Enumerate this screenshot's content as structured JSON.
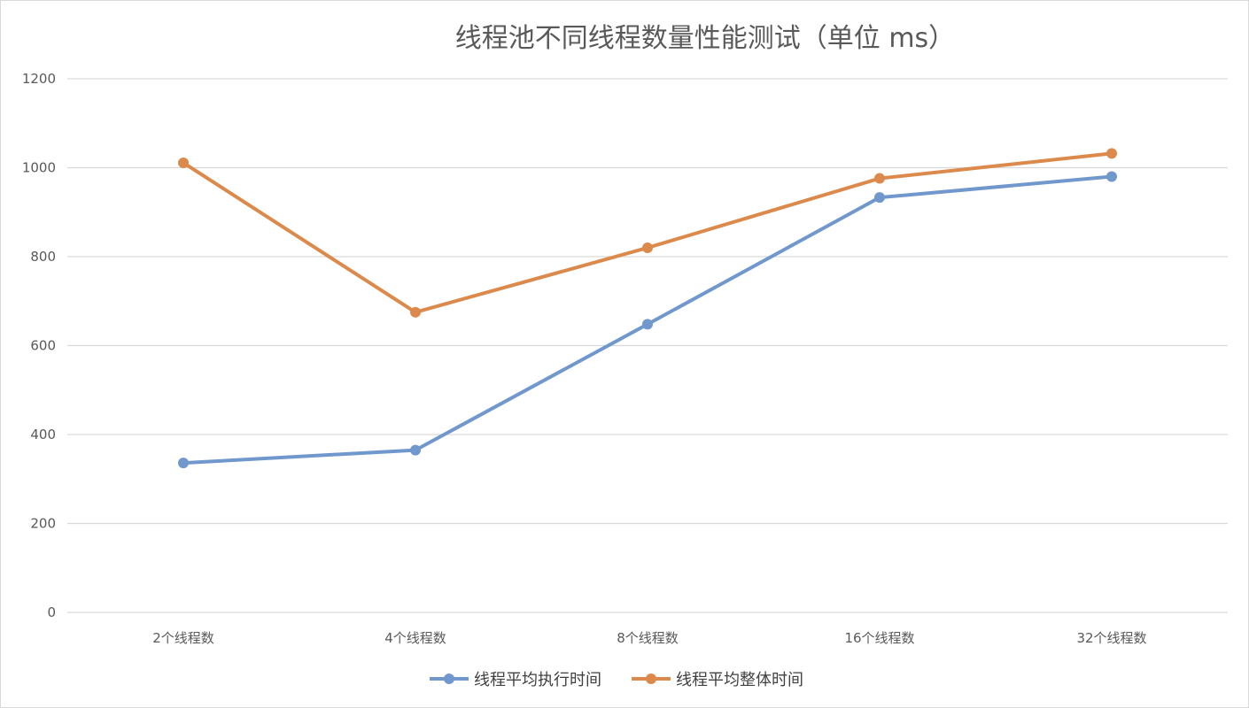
{
  "chart_data": {
    "type": "line",
    "title": "线程池不同线程数量性能测试（单位 ms）",
    "categories": [
      "2个线程数",
      "4个线程数",
      "8个线程数",
      "16个线程数",
      "32个线程数"
    ],
    "ylim": [
      0,
      1200
    ],
    "yticks": [
      0,
      200,
      400,
      600,
      800,
      1000,
      1200
    ],
    "grid": true,
    "legend_position": "bottom",
    "series": [
      {
        "name": "线程平均执行时间",
        "color": "#7098cd",
        "values": [
          336,
          365,
          648,
          933,
          980
        ]
      },
      {
        "name": "线程平均整体时间",
        "color": "#dc8a4c",
        "values": [
          1011,
          675,
          820,
          976,
          1032
        ]
      }
    ]
  }
}
